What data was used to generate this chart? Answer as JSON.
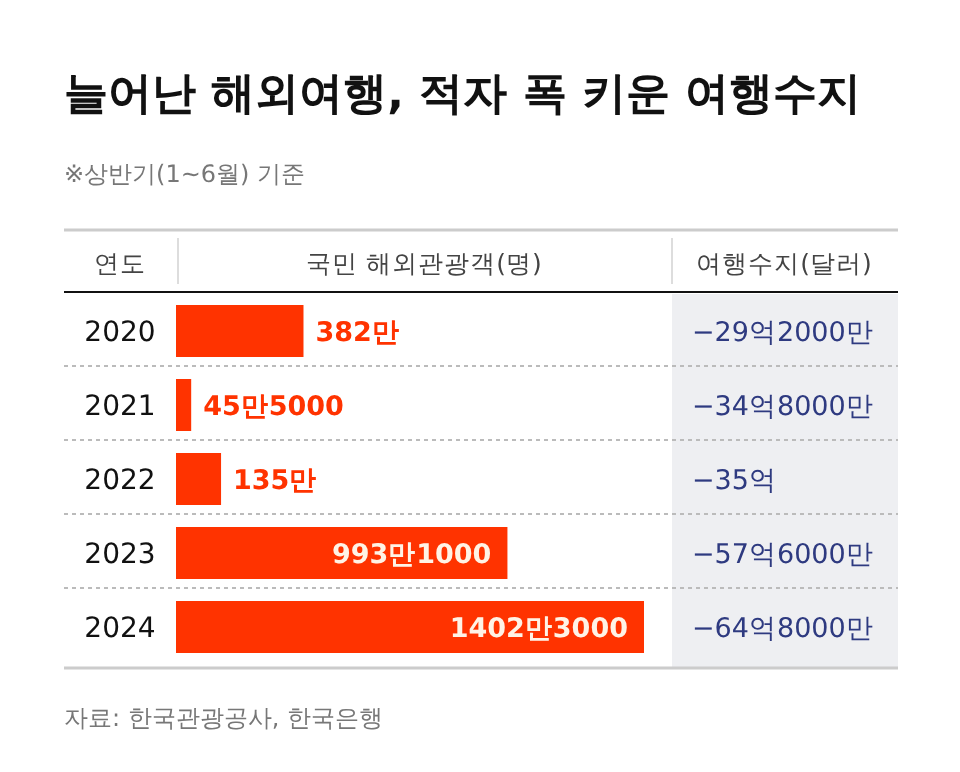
{
  "chart_data": [
    {
      "type": "bar",
      "orientation": "horizontal",
      "title": "늘어난 해외여행, 적자 폭 키운 여행수지",
      "subtitle": "※상반기(1~6월) 기준",
      "ylabel": "연도",
      "xlabel": "국민 해외관광객(명)",
      "categories": [
        "2020",
        "2021",
        "2022",
        "2023",
        "2024"
      ],
      "values": [
        382,
        45.5,
        135,
        993.1,
        1402.3
      ],
      "value_labels": [
        "382만",
        "45만5000",
        "135만",
        "993만1000",
        "1402만3000"
      ],
      "color": "#ff3300",
      "annotations": [
        "자료: 한국관광공사, 한국은행"
      ]
    },
    {
      "type": "other",
      "title": "여행수지(달러)",
      "annotations": [
        "−29억2000만",
        "−34억8000만",
        "−35억",
        "−57억6000만",
        "−64억8000만"
      ],
      "color": "#2e3a80"
    }
  ]
}
